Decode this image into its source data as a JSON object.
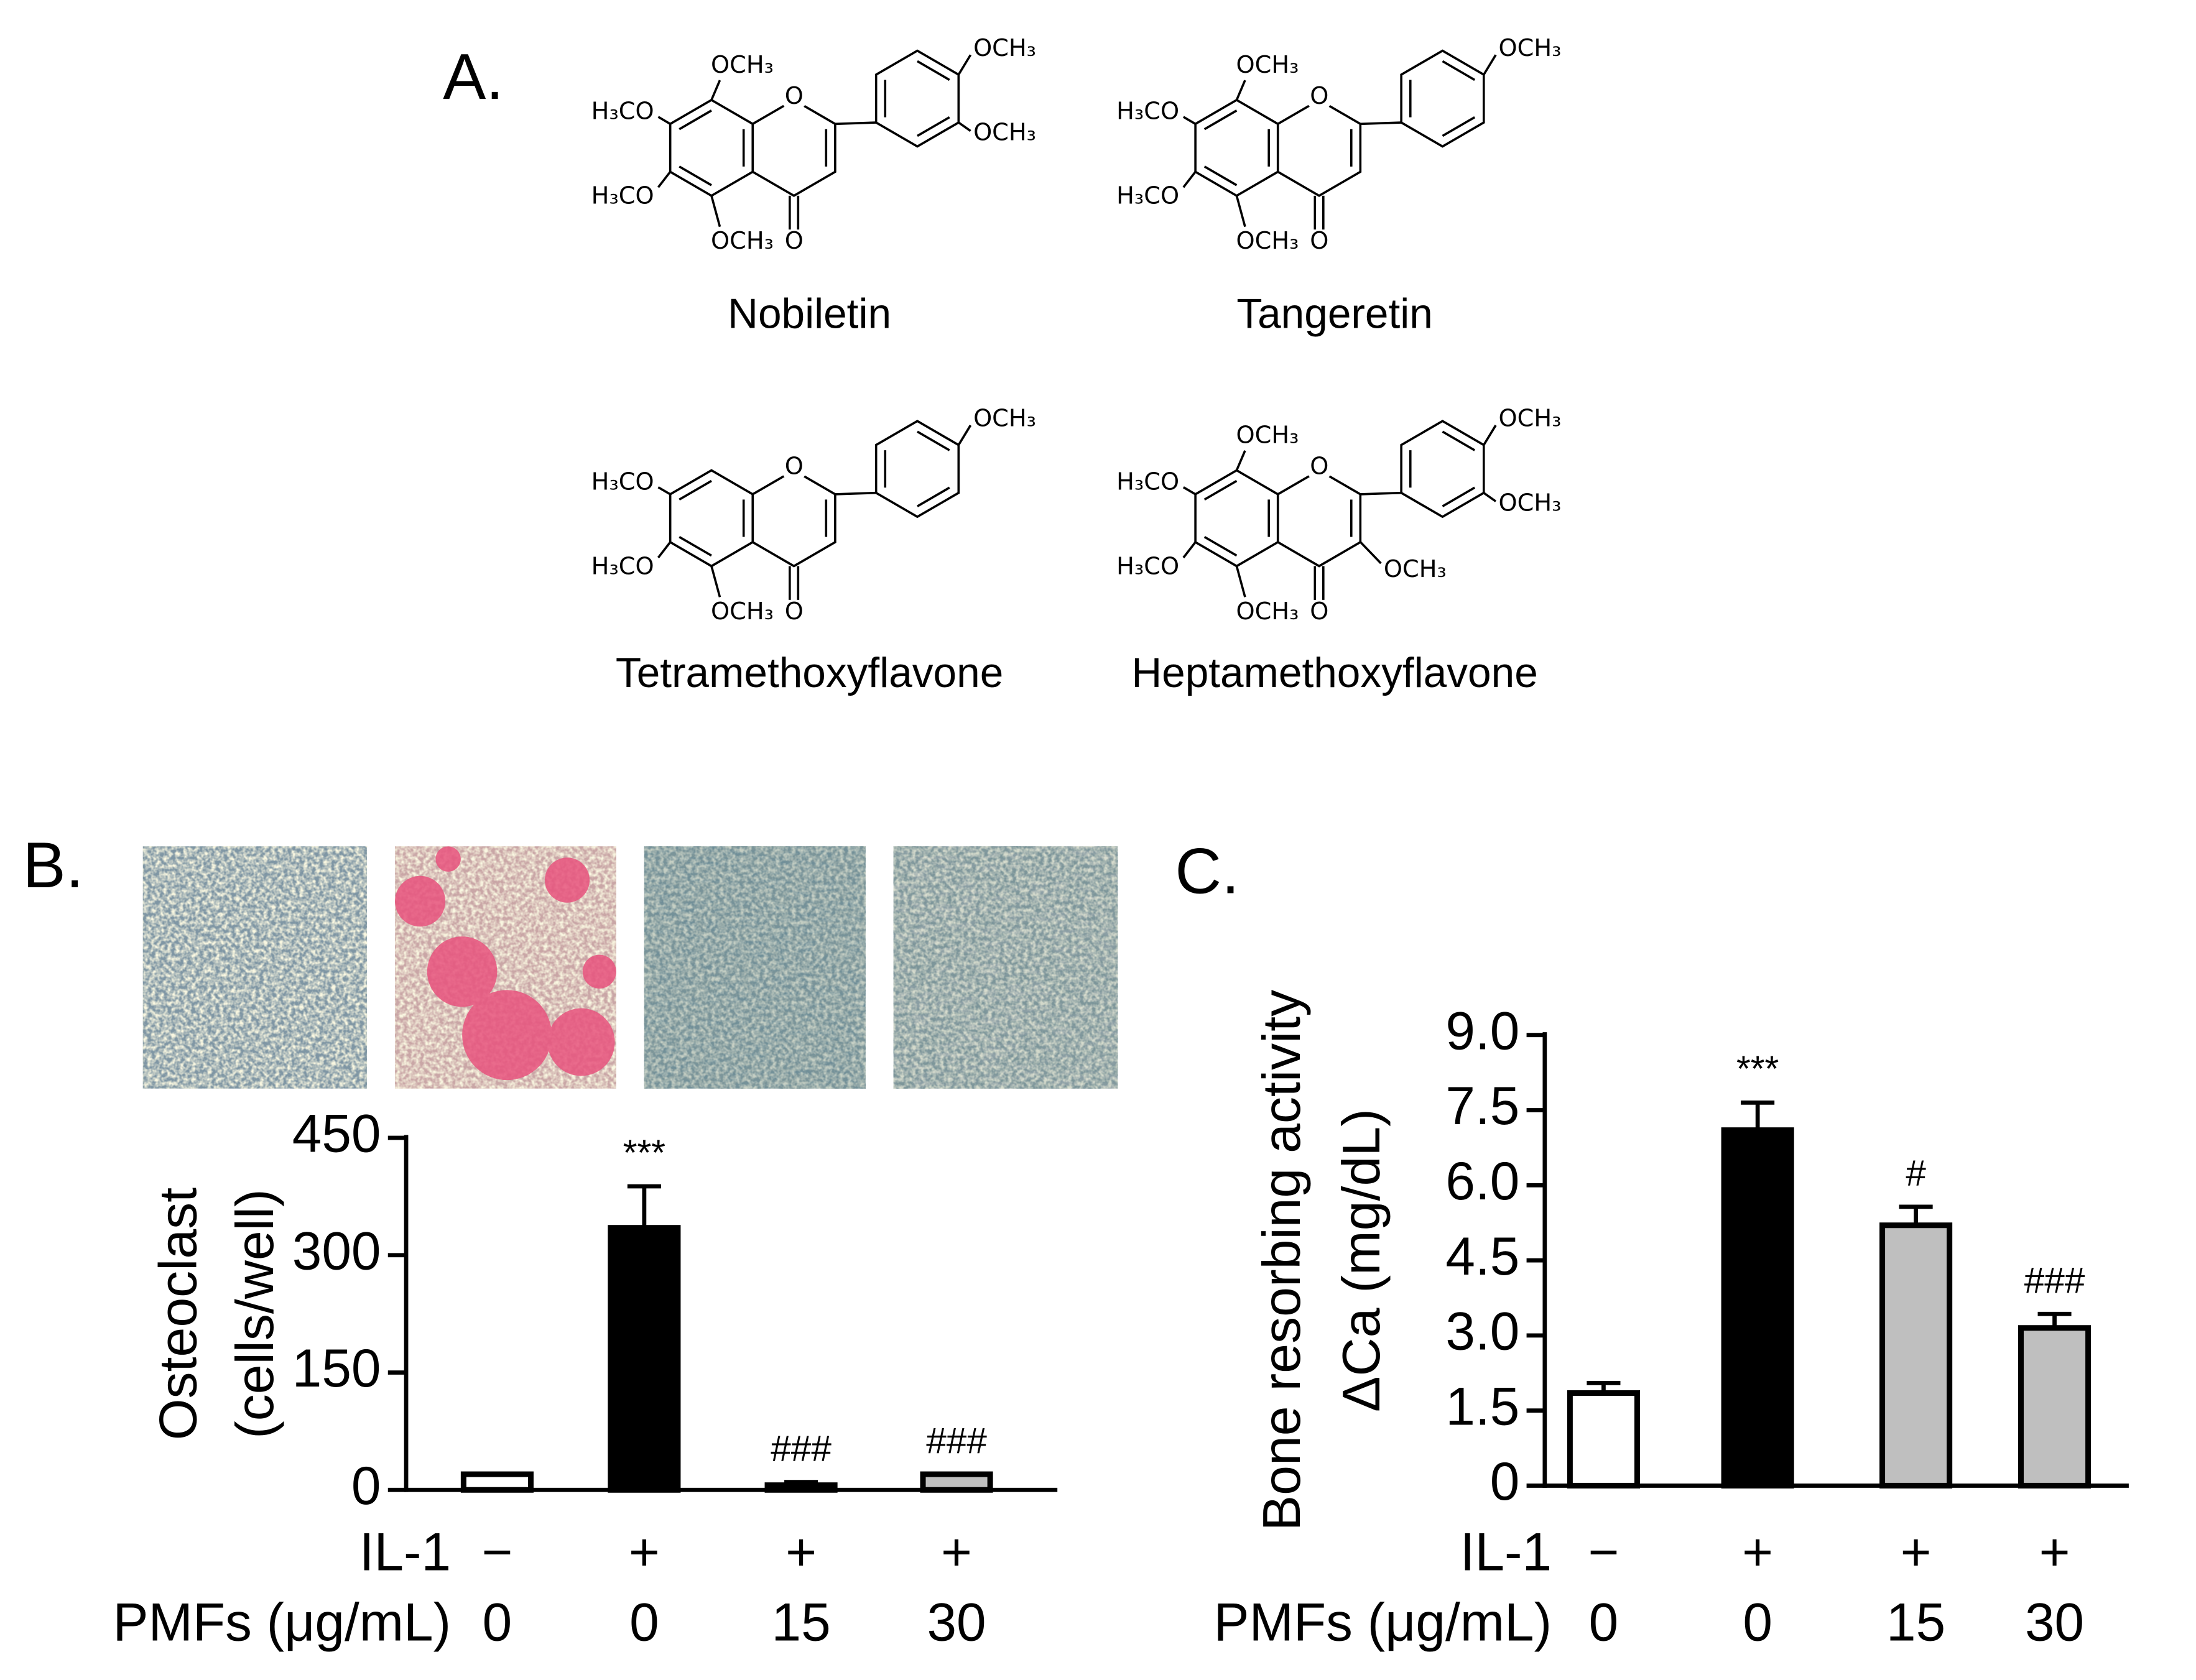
{
  "panels": {
    "a": "A.",
    "b": "B.",
    "c": "C."
  },
  "structures": [
    {
      "name": "Nobiletin",
      "labels": [
        "OCH₃",
        "H₃CO",
        "H₃CO",
        "OCH₃",
        "O",
        "O",
        "OCH₃",
        "OCH₃"
      ]
    },
    {
      "name": "Tangeretin",
      "labels": [
        "OCH₃",
        "H₃CO",
        "H₃CO",
        "OCH₃",
        "O",
        "O",
        "OCH₃"
      ]
    },
    {
      "name": "Tetramethoxyflavone",
      "labels": [
        "H₃CO",
        "H₃CO",
        "OCH₃",
        "O",
        "O",
        "OCH₃"
      ]
    },
    {
      "name": "Heptamethoxyflavone",
      "labels": [
        "OCH₃",
        "H₃CO",
        "H₃CO",
        "OCH₃",
        "O",
        "O",
        "OCH₃",
        "OCH₃",
        "OCH₃"
      ]
    }
  ],
  "chart_data": [
    {
      "type": "bar",
      "y_label": [
        "Osteoclast",
        "(cells/well)"
      ],
      "category_rows": [
        {
          "name": "IL-1",
          "labels": [
            "−",
            "+",
            "+",
            "+"
          ]
        },
        {
          "name": "PMFs (μg/mL)",
          "labels": [
            "0",
            "0",
            "15",
            "30"
          ]
        }
      ],
      "values": [
        20,
        335,
        6,
        20
      ],
      "errors": [
        0,
        53,
        4,
        0
      ],
      "colors": [
        "#ffffff",
        "#000000",
        "#bfbfbf",
        "#bfbfbf"
      ],
      "annotations": [
        null,
        "***",
        "###",
        "###"
      ],
      "ylim": [
        0,
        450
      ],
      "yticks": [
        0,
        150,
        300,
        450
      ]
    },
    {
      "type": "bar",
      "y_label": [
        "Bone resorbing activity",
        "ΔCa (mg/dL)"
      ],
      "category_rows": [
        {
          "name": "IL-1",
          "labels": [
            "−",
            "+",
            "+",
            "+"
          ]
        },
        {
          "name": "PMFs (μg/mL)",
          "labels": [
            "0",
            "0",
            "15",
            "30"
          ]
        }
      ],
      "values": [
        1.85,
        7.1,
        5.2,
        3.15
      ],
      "errors": [
        0.2,
        0.55,
        0.37,
        0.28
      ],
      "colors": [
        "#ffffff",
        "#000000",
        "#bfbfbf",
        "#bfbfbf"
      ],
      "annotations": [
        null,
        "***",
        "#",
        "###"
      ],
      "ylim": [
        0,
        9
      ],
      "yticks": [
        0,
        1.5,
        {
          "value": 3,
          "label": "3.0"
        },
        4.5,
        {
          "value": 6,
          "label": "6.0"
        },
        7.5,
        {
          "value": 9,
          "label": "9.0"
        }
      ]
    }
  ]
}
